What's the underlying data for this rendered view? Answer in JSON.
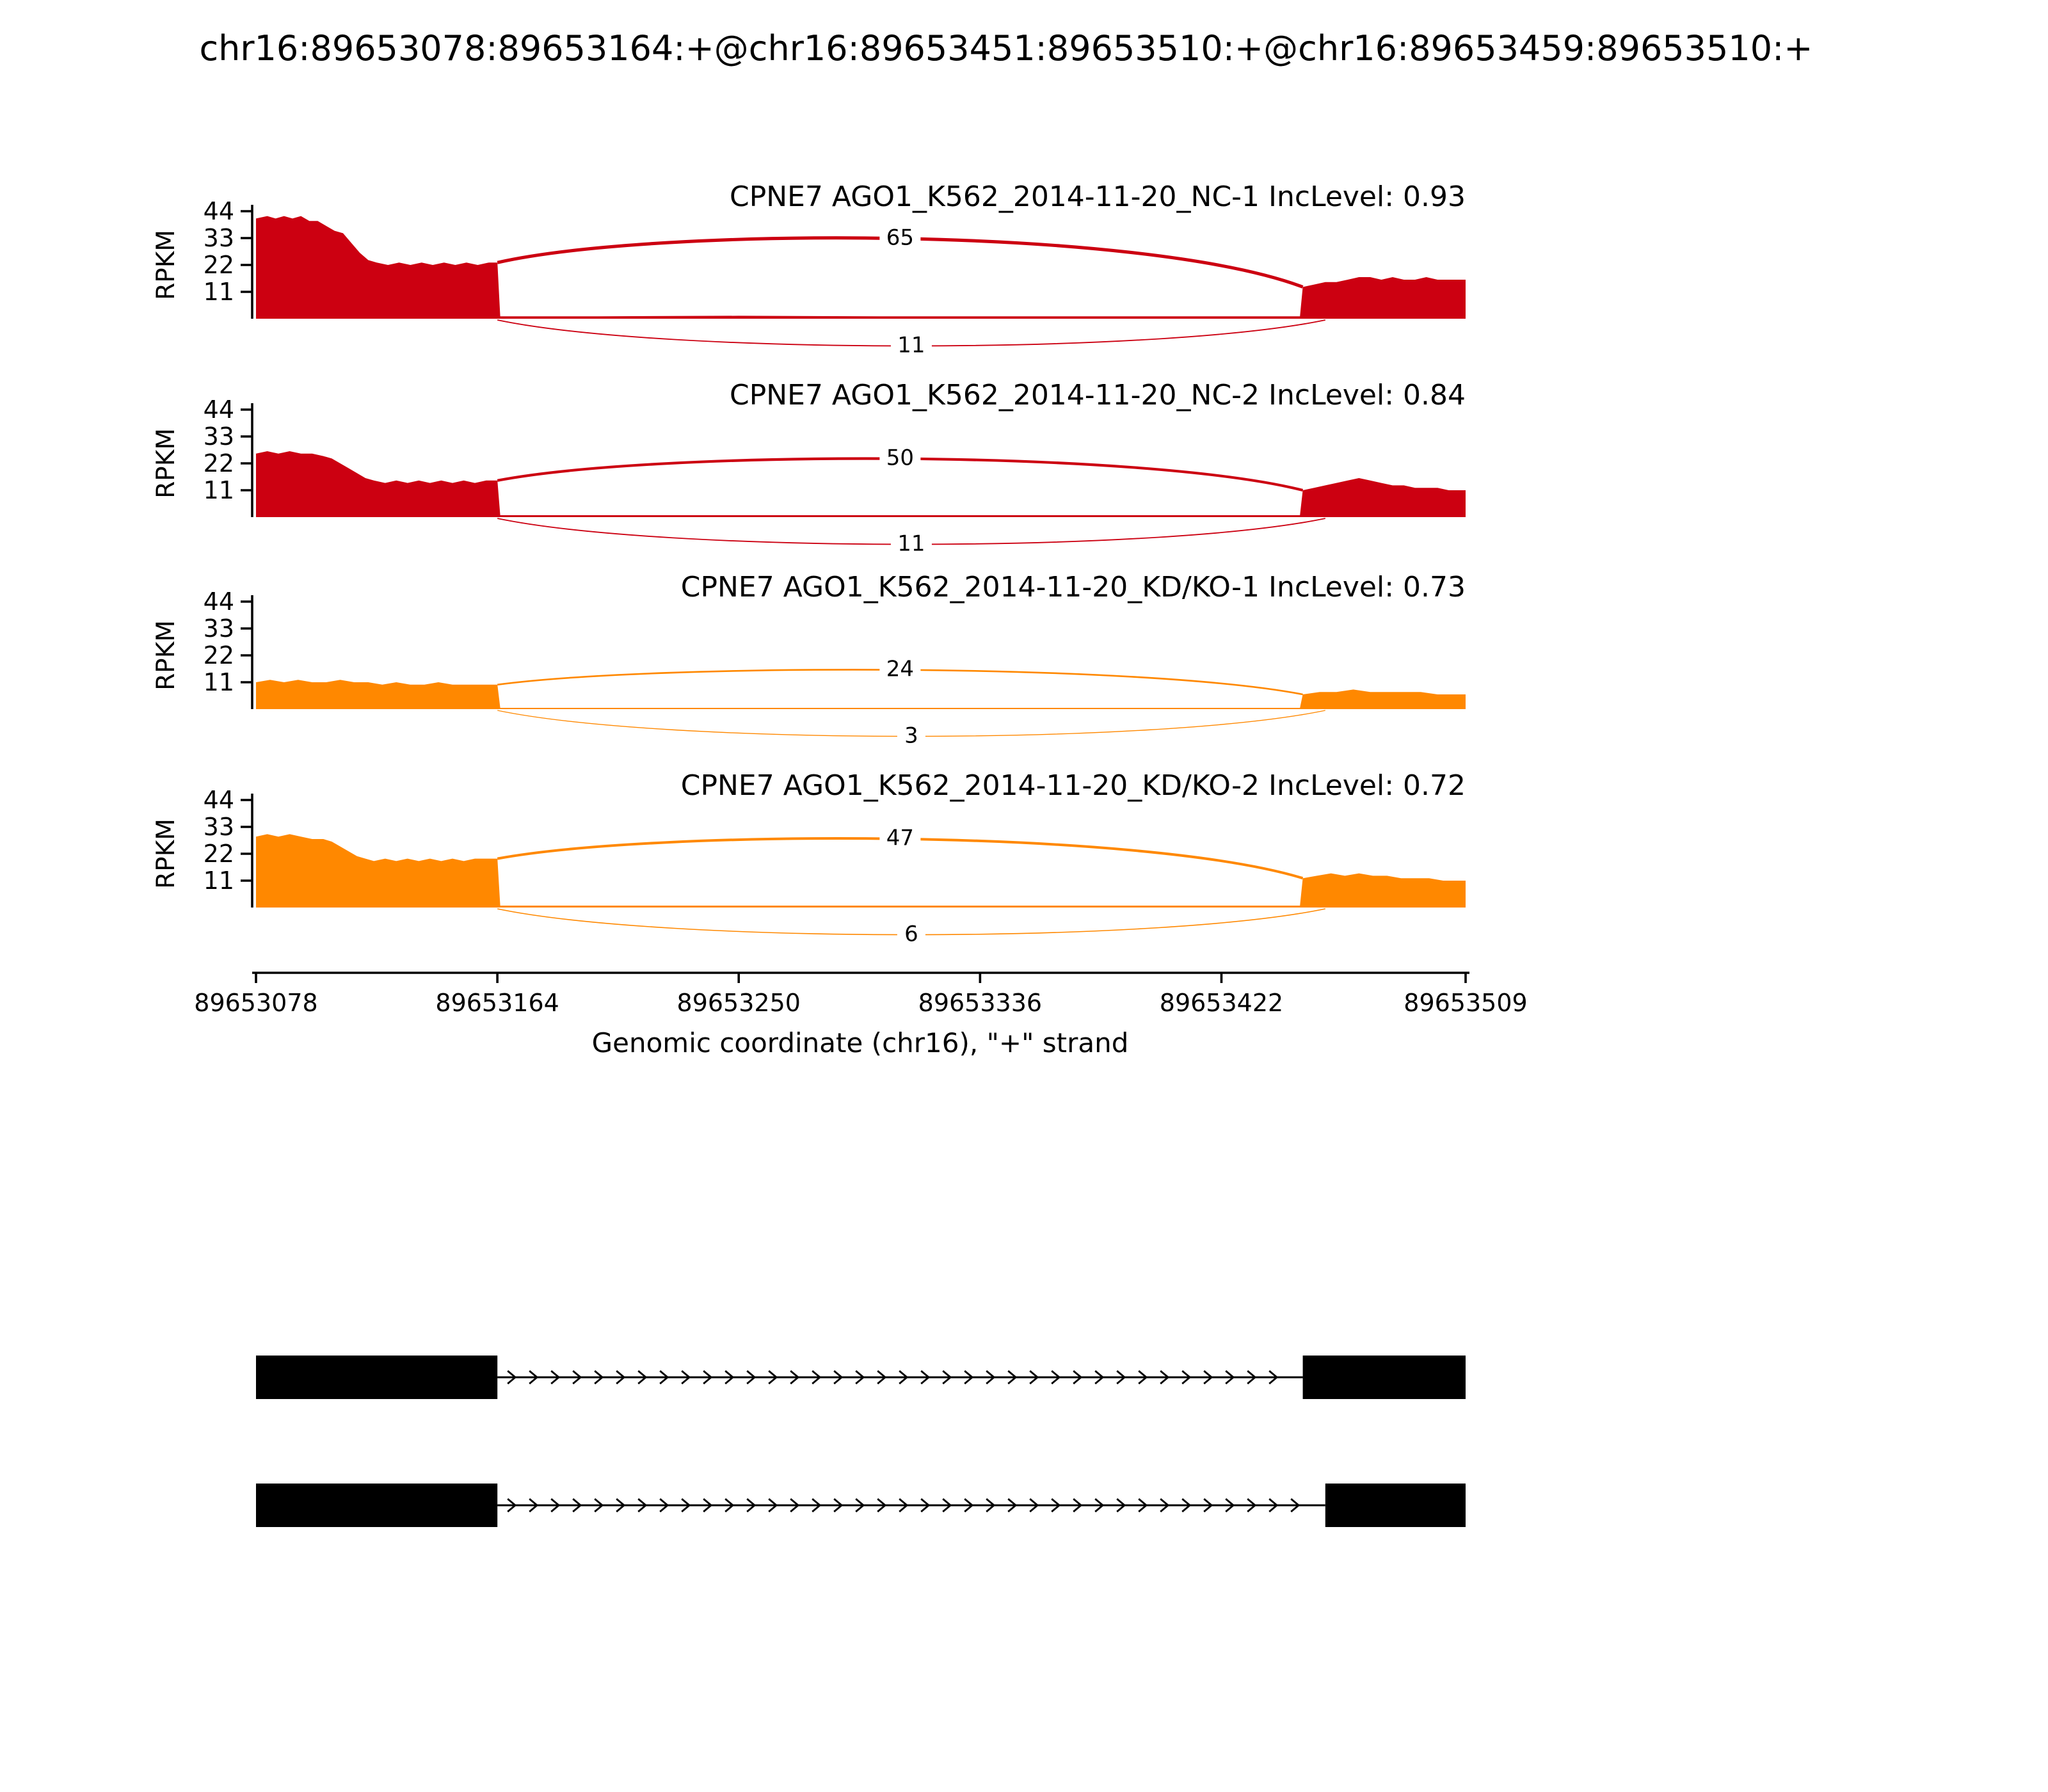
{
  "chart_data": {
    "type": "sashimi",
    "title": "chr16:89653078:89653164:+@chr16:89653451:89653510:+@chr16:89653459:89653510:+",
    "xlabel": "Genomic coordinate (chr16), \"+\" strand",
    "ylabel": "RPKM",
    "gene": "CPNE7",
    "strand": "+",
    "x_domain": [
      89653078,
      89653509
    ],
    "x_ticks": [
      89653078,
      89653164,
      89653250,
      89653336,
      89653422,
      89653509
    ],
    "y_ticks": [
      11,
      22,
      33,
      44
    ],
    "junction_source": 89653164,
    "colors": {
      "nc": "#CC0011",
      "kd_ko": "#FF8800"
    },
    "tracks": [
      {
        "label": "CPNE7 AGO1_K562_2014-11-20_NC-1 IncLevel: 0.93",
        "inc_level": 0.93,
        "color": "#CC0011",
        "junctions": [
          {
            "target": 89653451,
            "count": 65,
            "position": "top"
          },
          {
            "target": 89653459,
            "count": 11,
            "position": "bottom"
          }
        ],
        "coverage": [
          [
            89653078,
            41
          ],
          [
            89653082,
            42
          ],
          [
            89653085,
            41
          ],
          [
            89653088,
            42
          ],
          [
            89653091,
            41
          ],
          [
            89653094,
            42
          ],
          [
            89653097,
            40
          ],
          [
            89653100,
            40
          ],
          [
            89653103,
            38
          ],
          [
            89653106,
            36
          ],
          [
            89653109,
            35
          ],
          [
            89653112,
            31
          ],
          [
            89653115,
            27
          ],
          [
            89653118,
            24
          ],
          [
            89653121,
            23
          ],
          [
            89653125,
            22
          ],
          [
            89653129,
            23
          ],
          [
            89653133,
            22
          ],
          [
            89653137,
            23
          ],
          [
            89653141,
            22
          ],
          [
            89653145,
            23
          ],
          [
            89653149,
            22
          ],
          [
            89653153,
            23
          ],
          [
            89653157,
            22
          ],
          [
            89653161,
            23
          ],
          [
            89653164,
            23
          ],
          [
            89653165,
            1
          ],
          [
            89653200,
            1
          ],
          [
            89653250,
            1.2
          ],
          [
            89653300,
            1
          ],
          [
            89653350,
            1
          ],
          [
            89653400,
            1
          ],
          [
            89653450,
            1
          ],
          [
            89653451,
            13
          ],
          [
            89653455,
            14
          ],
          [
            89653459,
            15
          ],
          [
            89653463,
            15
          ],
          [
            89653467,
            16
          ],
          [
            89653471,
            17
          ],
          [
            89653475,
            17
          ],
          [
            89653479,
            16
          ],
          [
            89653483,
            17
          ],
          [
            89653487,
            16
          ],
          [
            89653491,
            16
          ],
          [
            89653495,
            17
          ],
          [
            89653499,
            16
          ],
          [
            89653503,
            16
          ],
          [
            89653509,
            16
          ]
        ]
      },
      {
        "label": "CPNE7 AGO1_K562_2014-11-20_NC-2 IncLevel: 0.84",
        "inc_level": 0.84,
        "color": "#CC0011",
        "junctions": [
          {
            "target": 89653451,
            "count": 50,
            "position": "top"
          },
          {
            "target": 89653459,
            "count": 11,
            "position": "bottom"
          }
        ],
        "coverage": [
          [
            89653078,
            26
          ],
          [
            89653082,
            27
          ],
          [
            89653086,
            26
          ],
          [
            89653090,
            27
          ],
          [
            89653094,
            26
          ],
          [
            89653098,
            26
          ],
          [
            89653102,
            25
          ],
          [
            89653105,
            24
          ],
          [
            89653108,
            22
          ],
          [
            89653111,
            20
          ],
          [
            89653114,
            18
          ],
          [
            89653117,
            16
          ],
          [
            89653120,
            15
          ],
          [
            89653124,
            14
          ],
          [
            89653128,
            15
          ],
          [
            89653132,
            14
          ],
          [
            89653136,
            15
          ],
          [
            89653140,
            14
          ],
          [
            89653144,
            15
          ],
          [
            89653148,
            14
          ],
          [
            89653152,
            15
          ],
          [
            89653156,
            14
          ],
          [
            89653160,
            15
          ],
          [
            89653164,
            15
          ],
          [
            89653165,
            0.8
          ],
          [
            89653250,
            0.8
          ],
          [
            89653350,
            0.8
          ],
          [
            89653450,
            0.8
          ],
          [
            89653451,
            11
          ],
          [
            89653455,
            12
          ],
          [
            89653459,
            13
          ],
          [
            89653463,
            14
          ],
          [
            89653467,
            15
          ],
          [
            89653471,
            16
          ],
          [
            89653475,
            15
          ],
          [
            89653479,
            14
          ],
          [
            89653483,
            13
          ],
          [
            89653487,
            13
          ],
          [
            89653491,
            12
          ],
          [
            89653495,
            12
          ],
          [
            89653499,
            12
          ],
          [
            89653503,
            11
          ],
          [
            89653509,
            11
          ]
        ]
      },
      {
        "label": "CPNE7 AGO1_K562_2014-11-20_KD/KO-1 IncLevel: 0.73",
        "inc_level": 0.73,
        "color": "#FF8800",
        "junctions": [
          {
            "target": 89653451,
            "count": 24,
            "position": "top"
          },
          {
            "target": 89653459,
            "count": 3,
            "position": "bottom"
          }
        ],
        "coverage": [
          [
            89653078,
            11
          ],
          [
            89653083,
            12
          ],
          [
            89653088,
            11
          ],
          [
            89653093,
            12
          ],
          [
            89653098,
            11
          ],
          [
            89653103,
            11
          ],
          [
            89653108,
            12
          ],
          [
            89653113,
            11
          ],
          [
            89653118,
            11
          ],
          [
            89653123,
            10
          ],
          [
            89653128,
            11
          ],
          [
            89653133,
            10
          ],
          [
            89653138,
            10
          ],
          [
            89653143,
            11
          ],
          [
            89653148,
            10
          ],
          [
            89653153,
            10
          ],
          [
            89653158,
            10
          ],
          [
            89653164,
            10
          ],
          [
            89653165,
            0.5
          ],
          [
            89653300,
            0.5
          ],
          [
            89653450,
            0.5
          ],
          [
            89653451,
            6
          ],
          [
            89653457,
            7
          ],
          [
            89653463,
            7
          ],
          [
            89653469,
            8
          ],
          [
            89653475,
            7
          ],
          [
            89653481,
            7
          ],
          [
            89653487,
            7
          ],
          [
            89653493,
            7
          ],
          [
            89653499,
            6
          ],
          [
            89653509,
            6
          ]
        ]
      },
      {
        "label": "CPNE7 AGO1_K562_2014-11-20_KD/KO-2 IncLevel: 0.72",
        "inc_level": 0.72,
        "color": "#FF8800",
        "junctions": [
          {
            "target": 89653451,
            "count": 47,
            "position": "top"
          },
          {
            "target": 89653459,
            "count": 6,
            "position": "bottom"
          }
        ],
        "coverage": [
          [
            89653078,
            29
          ],
          [
            89653082,
            30
          ],
          [
            89653086,
            29
          ],
          [
            89653090,
            30
          ],
          [
            89653094,
            29
          ],
          [
            89653098,
            28
          ],
          [
            89653102,
            28
          ],
          [
            89653105,
            27
          ],
          [
            89653108,
            25
          ],
          [
            89653111,
            23
          ],
          [
            89653114,
            21
          ],
          [
            89653117,
            20
          ],
          [
            89653120,
            19
          ],
          [
            89653124,
            20
          ],
          [
            89653128,
            19
          ],
          [
            89653132,
            20
          ],
          [
            89653136,
            19
          ],
          [
            89653140,
            20
          ],
          [
            89653144,
            19
          ],
          [
            89653148,
            20
          ],
          [
            89653152,
            19
          ],
          [
            89653156,
            20
          ],
          [
            89653160,
            20
          ],
          [
            89653164,
            20
          ],
          [
            89653165,
            0.8
          ],
          [
            89653250,
            0.8
          ],
          [
            89653350,
            0.8
          ],
          [
            89653450,
            0.8
          ],
          [
            89653451,
            12
          ],
          [
            89653456,
            13
          ],
          [
            89653461,
            14
          ],
          [
            89653466,
            13
          ],
          [
            89653471,
            14
          ],
          [
            89653476,
            13
          ],
          [
            89653481,
            13
          ],
          [
            89653486,
            12
          ],
          [
            89653491,
            12
          ],
          [
            89653496,
            12
          ],
          [
            89653501,
            11
          ],
          [
            89653509,
            11
          ]
        ]
      }
    ],
    "isoforms": [
      {
        "exons": [
          [
            89653078,
            89653164
          ],
          [
            89653451,
            89653510
          ]
        ]
      },
      {
        "exons": [
          [
            89653078,
            89653164
          ],
          [
            89653459,
            89653510
          ]
        ]
      }
    ]
  }
}
